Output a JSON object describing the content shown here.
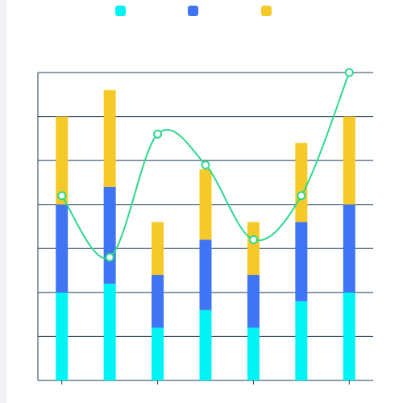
{
  "chart_data": {
    "type": "bar",
    "stacked": true,
    "categories": [
      "",
      "",
      "",
      "",
      "",
      "",
      ""
    ],
    "series": [
      {
        "values": [
          2,
          2.2,
          1.2,
          1.6,
          1.2,
          1.8,
          2
        ],
        "color": "#00f4f4"
      },
      {
        "values": [
          2,
          2.2,
          1.2,
          1.6,
          1.2,
          1.8,
          2
        ],
        "color": "#3f74f5"
      },
      {
        "values": [
          2,
          2.2,
          1.2,
          1.6,
          1.2,
          1.8,
          2
        ],
        "color": "#f5c928"
      }
    ],
    "line": {
      "type": "line",
      "smooth": true,
      "values": [
        4.2,
        2.8,
        5.6,
        4.9,
        3.2,
        4.2,
        7.0
      ],
      "color": "#2bd98e"
    },
    "ylim": [
      0,
      7
    ],
    "y_interval": 1,
    "grid": true,
    "legend_position": "top-center",
    "title": "",
    "xlabel": "",
    "ylabel": ""
  }
}
